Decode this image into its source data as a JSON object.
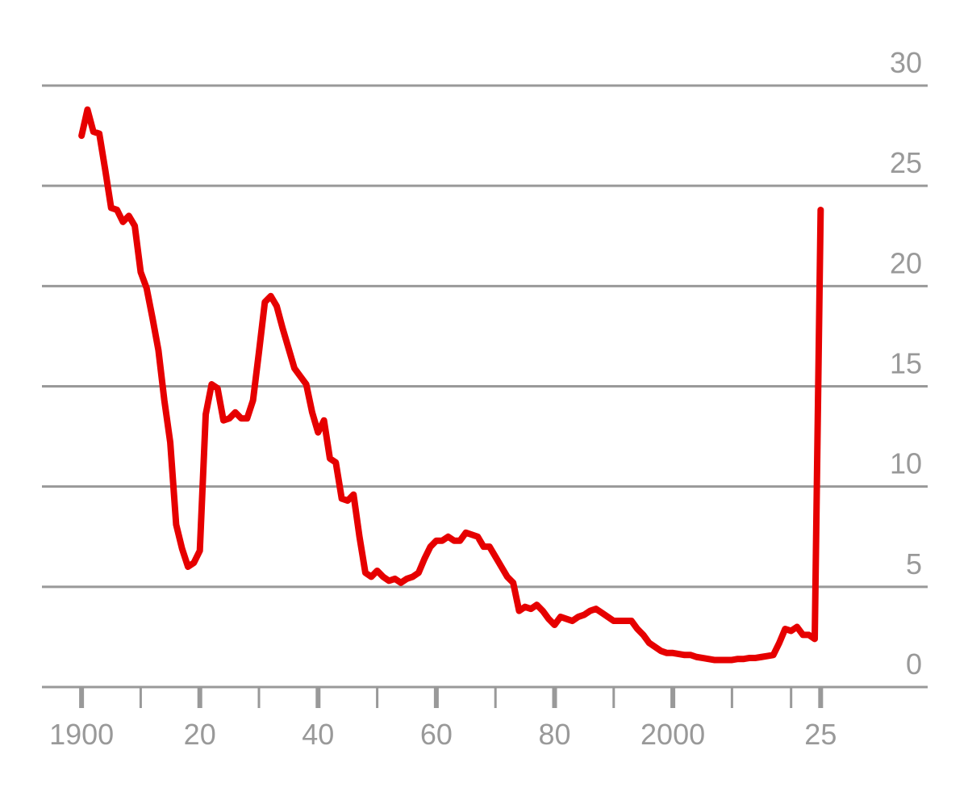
{
  "chart_data": {
    "type": "line",
    "x": [
      1900,
      1901,
      1902,
      1903,
      1904,
      1905,
      1906,
      1907,
      1908,
      1909,
      1910,
      1911,
      1912,
      1913,
      1914,
      1915,
      1916,
      1917,
      1918,
      1919,
      1920,
      1921,
      1922,
      1923,
      1924,
      1925,
      1926,
      1927,
      1928,
      1929,
      1930,
      1931,
      1932,
      1933,
      1934,
      1935,
      1936,
      1937,
      1938,
      1939,
      1940,
      1941,
      1942,
      1943,
      1944,
      1945,
      1946,
      1947,
      1948,
      1949,
      1950,
      1951,
      1952,
      1953,
      1954,
      1955,
      1956,
      1957,
      1958,
      1959,
      1960,
      1961,
      1962,
      1963,
      1964,
      1965,
      1966,
      1967,
      1968,
      1969,
      1970,
      1971,
      1972,
      1973,
      1974,
      1975,
      1976,
      1977,
      1978,
      1979,
      1980,
      1981,
      1982,
      1983,
      1984,
      1985,
      1986,
      1987,
      1988,
      1989,
      1990,
      1991,
      1992,
      1993,
      1994,
      1995,
      1996,
      1997,
      1998,
      1999,
      2000,
      2001,
      2002,
      2003,
      2004,
      2005,
      2006,
      2007,
      2008,
      2009,
      2010,
      2011,
      2012,
      2013,
      2014,
      2015,
      2016,
      2017,
      2018,
      2019,
      2020,
      2021,
      2022,
      2023,
      2024,
      2025
    ],
    "series": [
      {
        "color": "#e60000",
        "values": [
          27.5,
          28.8,
          27.7,
          27.6,
          25.8,
          23.9,
          23.8,
          23.2,
          23.5,
          23.0,
          20.7,
          19.9,
          18.4,
          16.8,
          14.3,
          12.2,
          8.1,
          6.9,
          6.0,
          6.2,
          6.8,
          13.6,
          15.1,
          14.9,
          13.3,
          13.4,
          13.7,
          13.4,
          13.4,
          14.3,
          16.7,
          19.2,
          19.5,
          19.0,
          17.9,
          16.9,
          15.9,
          15.5,
          15.1,
          13.7,
          12.7,
          13.3,
          11.4,
          11.2,
          9.4,
          9.3,
          9.6,
          7.5,
          5.7,
          5.5,
          5.8,
          5.5,
          5.3,
          5.4,
          5.2,
          5.4,
          5.5,
          5.7,
          6.4,
          7.0,
          7.3,
          7.3,
          7.5,
          7.3,
          7.3,
          7.7,
          7.6,
          7.5,
          7.0,
          7.0,
          6.5,
          6.0,
          5.5,
          5.2,
          3.8,
          4.0,
          3.9,
          4.1,
          3.8,
          3.4,
          3.1,
          3.5,
          3.4,
          3.3,
          3.5,
          3.6,
          3.8,
          3.9,
          3.7,
          3.5,
          3.3,
          3.3,
          3.3,
          3.3,
          2.9,
          2.6,
          2.2,
          2.0,
          1.8,
          1.7,
          1.7,
          1.65,
          1.6,
          1.6,
          1.5,
          1.45,
          1.4,
          1.35,
          1.35,
          1.35,
          1.35,
          1.4,
          1.4,
          1.45,
          1.45,
          1.5,
          1.55,
          1.6,
          2.2,
          2.9,
          2.8,
          3.0,
          2.6,
          2.6,
          2.4,
          23.8
        ]
      }
    ],
    "xlim": [
      1893.3,
      2043.1
    ],
    "xticks": [
      {
        "value": 1900,
        "label": "1900"
      },
      {
        "value": 1920,
        "label": "20"
      },
      {
        "value": 1940,
        "label": "40"
      },
      {
        "value": 1960,
        "label": "60"
      },
      {
        "value": 1980,
        "label": "80"
      },
      {
        "value": 2000,
        "label": "2000"
      },
      {
        "value": 2025,
        "label": "25"
      }
    ],
    "xminorticks": [
      1910,
      1930,
      1950,
      1970,
      1990,
      2010,
      2020
    ],
    "ylim": [
      0,
      30
    ],
    "yticks": [
      0,
      5,
      10,
      15,
      20,
      25,
      30
    ],
    "grid": true
  }
}
